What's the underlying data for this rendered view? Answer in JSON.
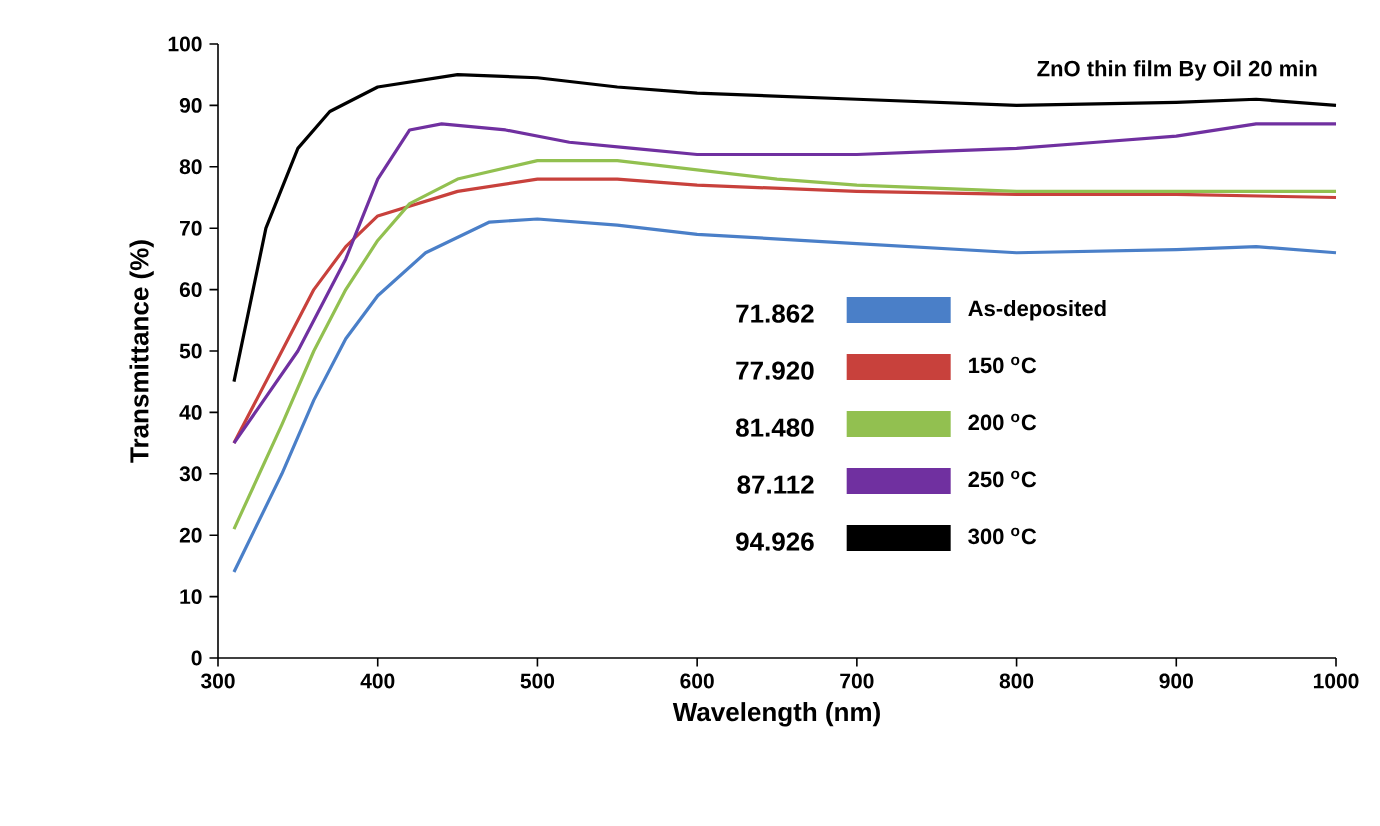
{
  "chart_data": {
    "type": "line",
    "title": "ZnO thin film By Oil 20 min",
    "xlabel": "Wavelength (nm)",
    "ylabel": "Transmittance (%)",
    "xlim": [
      300,
      1000
    ],
    "ylim": [
      0,
      100
    ],
    "xticks": [
      300,
      400,
      500,
      600,
      700,
      800,
      900,
      1000
    ],
    "yticks": [
      0,
      10,
      20,
      30,
      40,
      50,
      60,
      70,
      80,
      90,
      100
    ],
    "grid": false,
    "legend": "right",
    "marker": "none",
    "line_style": "solid",
    "annotations": [
      "71.862",
      "77.920",
      "81.480",
      "87.112",
      "94.926"
    ],
    "series": [
      {
        "name": "As-deposited",
        "color": "#4a7fc8",
        "x": [
          310,
          340,
          360,
          380,
          400,
          430,
          470,
          500,
          550,
          600,
          700,
          800,
          900,
          950,
          1000
        ],
        "values": [
          14,
          30,
          42,
          52,
          59,
          66,
          71,
          71.5,
          70.5,
          69,
          67.5,
          66,
          66.5,
          67,
          66
        ]
      },
      {
        "name": "150 $^{o}$C",
        "color": "#c8413c",
        "x": [
          310,
          340,
          360,
          380,
          400,
          450,
          500,
          550,
          600,
          700,
          800,
          900,
          1000
        ],
        "values": [
          35,
          50,
          60,
          67,
          72,
          76,
          78,
          78,
          77,
          76,
          75.5,
          75.5,
          75
        ]
      },
      {
        "name": "200 $^{o}$C",
        "color": "#92c050",
        "x": [
          310,
          340,
          360,
          380,
          400,
          420,
          450,
          500,
          550,
          600,
          650,
          700,
          800,
          900,
          1000
        ],
        "values": [
          21,
          38,
          50,
          60,
          68,
          74,
          78,
          81,
          81,
          79.5,
          78,
          77,
          76,
          76,
          76
        ]
      },
      {
        "name": "250 $^{o}$C",
        "color": "#7030a0",
        "x": [
          310,
          350,
          380,
          400,
          420,
          440,
          480,
          520,
          560,
          600,
          650,
          700,
          750,
          800,
          850,
          900,
          950,
          1000
        ],
        "values": [
          35,
          50,
          65,
          78,
          86,
          87,
          86,
          84,
          83,
          82,
          82,
          82,
          82.5,
          83,
          84,
          85,
          87,
          87
        ]
      },
      {
        "name": "300 $^{o}$C",
        "color": "#000000",
        "x": [
          310,
          330,
          350,
          370,
          400,
          450,
          500,
          550,
          600,
          700,
          800,
          900,
          950,
          1000
        ],
        "values": [
          45,
          70,
          83,
          89,
          93,
          95,
          94.5,
          93,
          92,
          91,
          90,
          90.5,
          91,
          90
        ]
      }
    ]
  }
}
